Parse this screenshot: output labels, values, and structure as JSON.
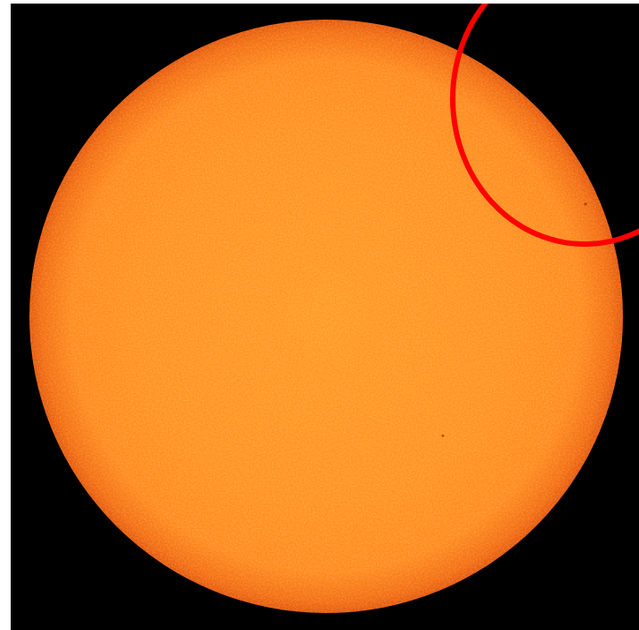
{
  "image": {
    "subject": "sun-disk",
    "palette": {
      "background": "#ffffff",
      "sky": "#000000",
      "disk_center": "#ff9a26",
      "disk_mid": "#ff9222",
      "disk_limb": "#f36d12",
      "disk_edge": "#e4570c",
      "highlight_circle": "#ff0000",
      "sunspot": "#b04a08"
    }
  }
}
